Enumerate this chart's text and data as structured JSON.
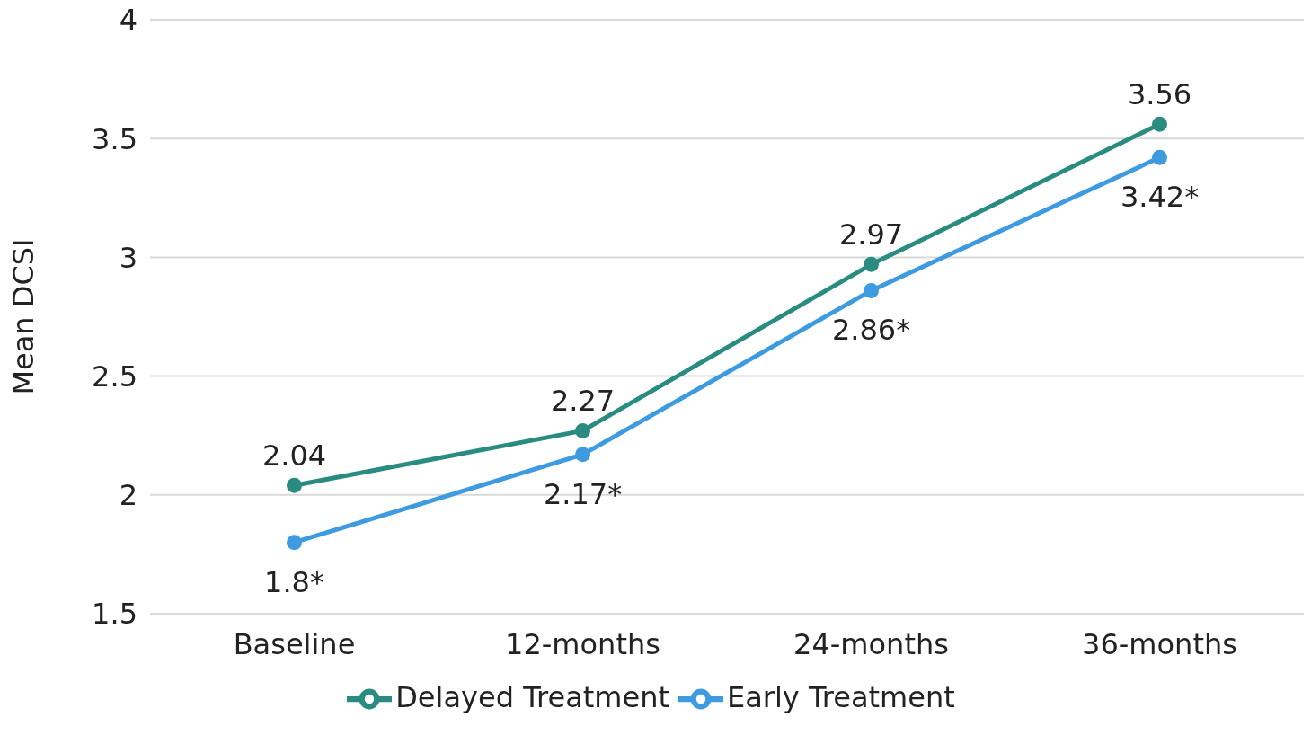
{
  "chart_data": {
    "type": "line",
    "ylabel": "Mean DCSI",
    "categories": [
      "Baseline",
      "12-months",
      "24-months",
      "36-months"
    ],
    "series": [
      {
        "name": "Early Treatment",
        "color": "#3f9be0",
        "values": [
          1.8,
          2.17,
          2.86,
          3.42
        ],
        "value_labels": [
          "1.8*",
          "2.17*",
          "2.86*",
          "3.42*"
        ]
      },
      {
        "name": "Delayed Treatment",
        "color": "#2a8c80",
        "values": [
          2.04,
          2.27,
          2.97,
          3.56
        ],
        "value_labels": [
          "2.04",
          "2.27",
          "2.97",
          "3.56"
        ]
      }
    ],
    "ylim": [
      1.5,
      4
    ],
    "yticks": [
      1.5,
      2,
      2.5,
      3,
      3.5,
      4
    ],
    "grid": "y",
    "legend": "bottom",
    "marker": "circle",
    "line_style": "solid"
  }
}
